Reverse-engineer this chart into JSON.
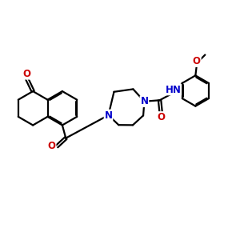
{
  "bg_color": "#ffffff",
  "bond_color": "#000000",
  "N_color": "#0000cc",
  "O_color": "#cc0000",
  "lw": 1.6,
  "dbo": 0.055,
  "fs": 8.5,
  "figsize": [
    3.0,
    3.0
  ],
  "dpi": 100,
  "xlim": [
    0,
    10
  ],
  "ylim": [
    0,
    10
  ]
}
